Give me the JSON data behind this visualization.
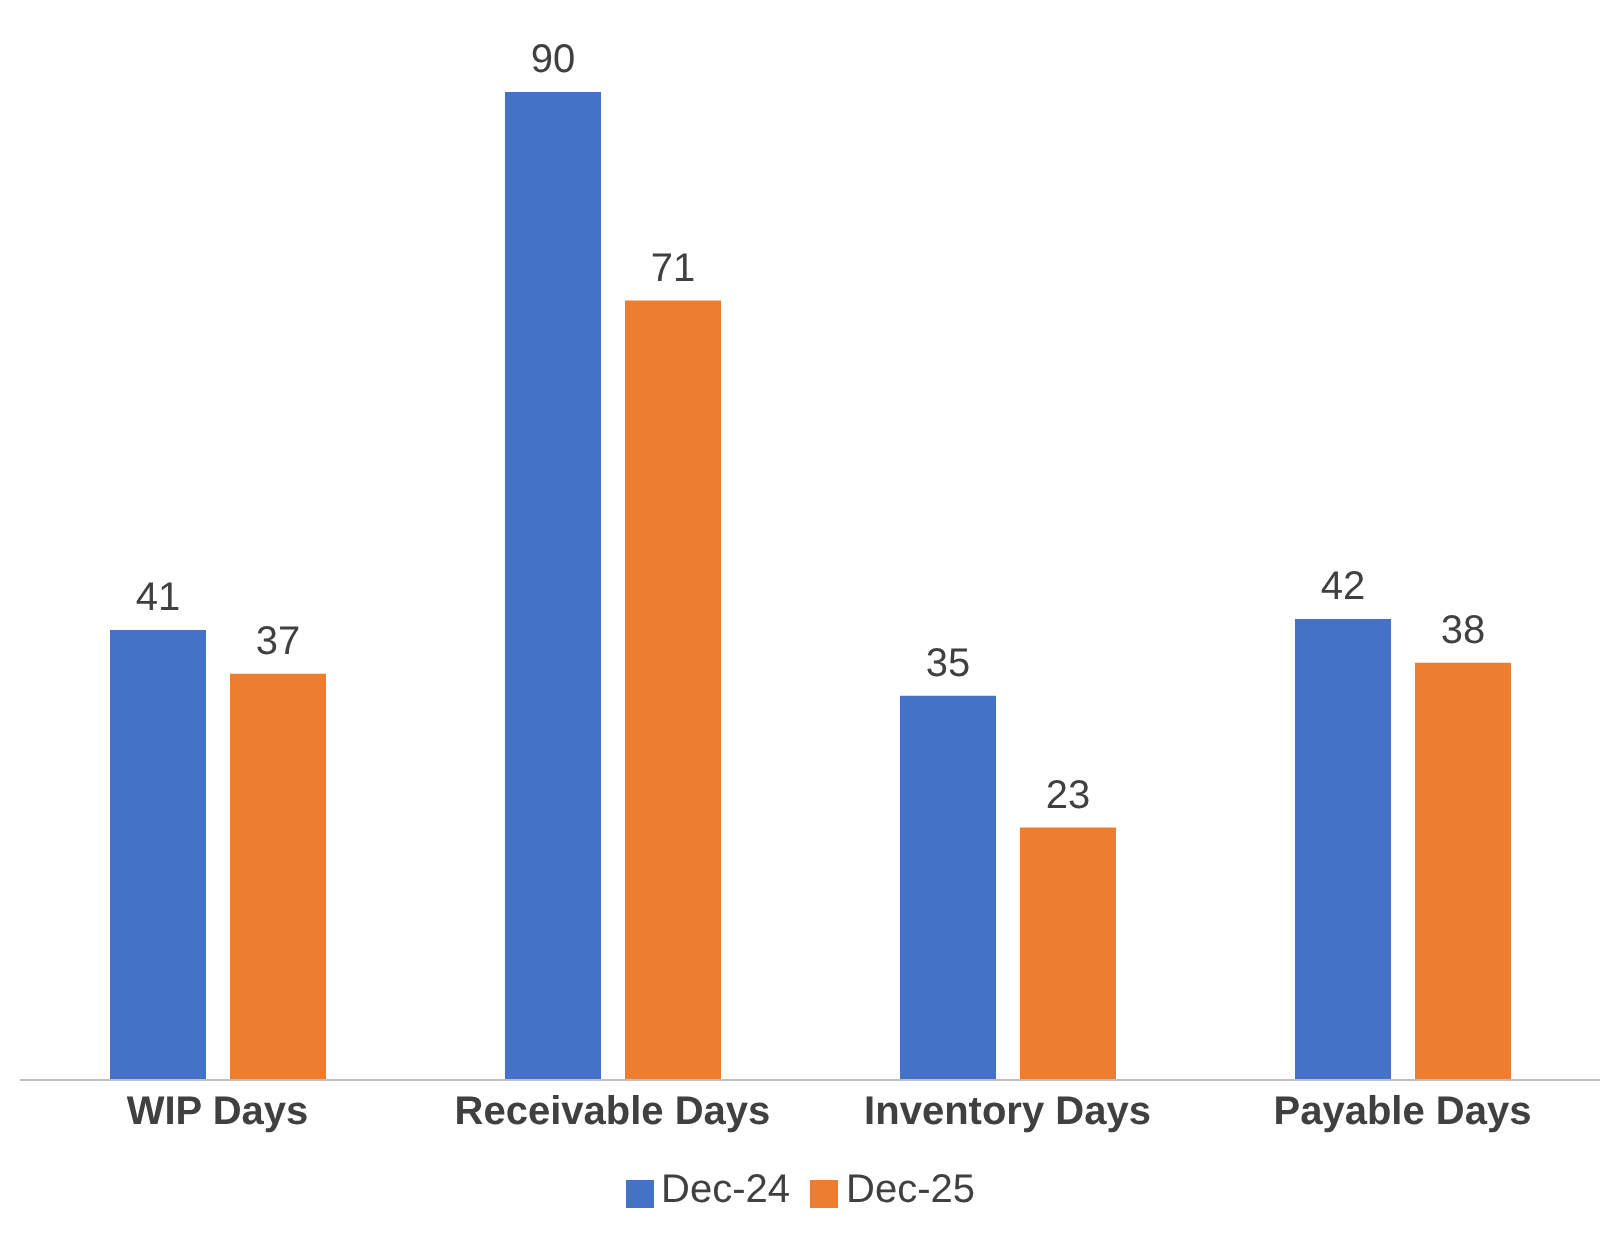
{
  "chart_data": {
    "type": "bar",
    "categories": [
      "WIP Days",
      "Receivable Days",
      "Inventory Days",
      "Payable Days"
    ],
    "series": [
      {
        "name": "Dec-24",
        "color": "#4472c4",
        "values": [
          41,
          90,
          35,
          42
        ]
      },
      {
        "name": "Dec-25",
        "color": "#ed7d31",
        "values": [
          37,
          71,
          23,
          38
        ]
      }
    ],
    "data_labels": true,
    "legend": "bottom",
    "grid": false,
    "tick_labels": "x"
  }
}
